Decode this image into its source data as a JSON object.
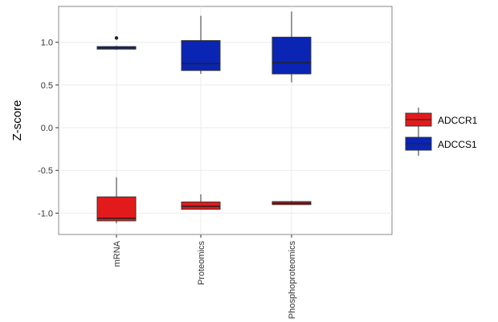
{
  "chart_data": {
    "type": "box",
    "title": "",
    "xlabel": "",
    "ylabel": "Z-score",
    "ylim": [
      -1.25,
      1.42
    ],
    "yticks": [
      {
        "value": 1.0,
        "label": "1.0"
      },
      {
        "value": 0.5,
        "label": "0.5"
      },
      {
        "value": 0.0,
        "label": "0.0"
      },
      {
        "value": -0.5,
        "label": "-0.5"
      },
      {
        "value": -1.0,
        "label": "-1.0"
      }
    ],
    "categories": [
      "mRNA",
      "Proteomics",
      "Phosphoproteomics"
    ],
    "grid": true,
    "legend_position": "right",
    "series": [
      {
        "name": "ADCCR1",
        "color": "#e31a1c",
        "boxes": [
          {
            "category": "mRNA",
            "min": -1.12,
            "q1": -1.09,
            "median": -1.06,
            "q3": -0.81,
            "max": -0.58,
            "outliers": []
          },
          {
            "category": "Proteomics",
            "min": -0.96,
            "q1": -0.955,
            "median": -0.92,
            "q3": -0.87,
            "max": -0.78,
            "outliers": []
          },
          {
            "category": "Phosphoproteomics",
            "min": -0.9,
            "q1": -0.9,
            "median": -0.885,
            "q3": -0.865,
            "max": -0.855,
            "outliers": []
          }
        ]
      },
      {
        "name": "ADCCS1",
        "color": "#0a24b4",
        "boxes": [
          {
            "category": "mRNA",
            "min": 0.91,
            "q1": 0.92,
            "median": 0.935,
            "q3": 0.95,
            "max": 0.96,
            "outliers": [
              1.05
            ]
          },
          {
            "category": "Proteomics",
            "min": 0.63,
            "q1": 0.67,
            "median": 0.75,
            "q3": 1.02,
            "max": 1.31,
            "outliers": []
          },
          {
            "category": "Phosphoproteomics",
            "min": 0.53,
            "q1": 0.63,
            "median": 0.76,
            "q3": 1.06,
            "max": 1.36,
            "outliers": []
          }
        ]
      }
    ]
  }
}
